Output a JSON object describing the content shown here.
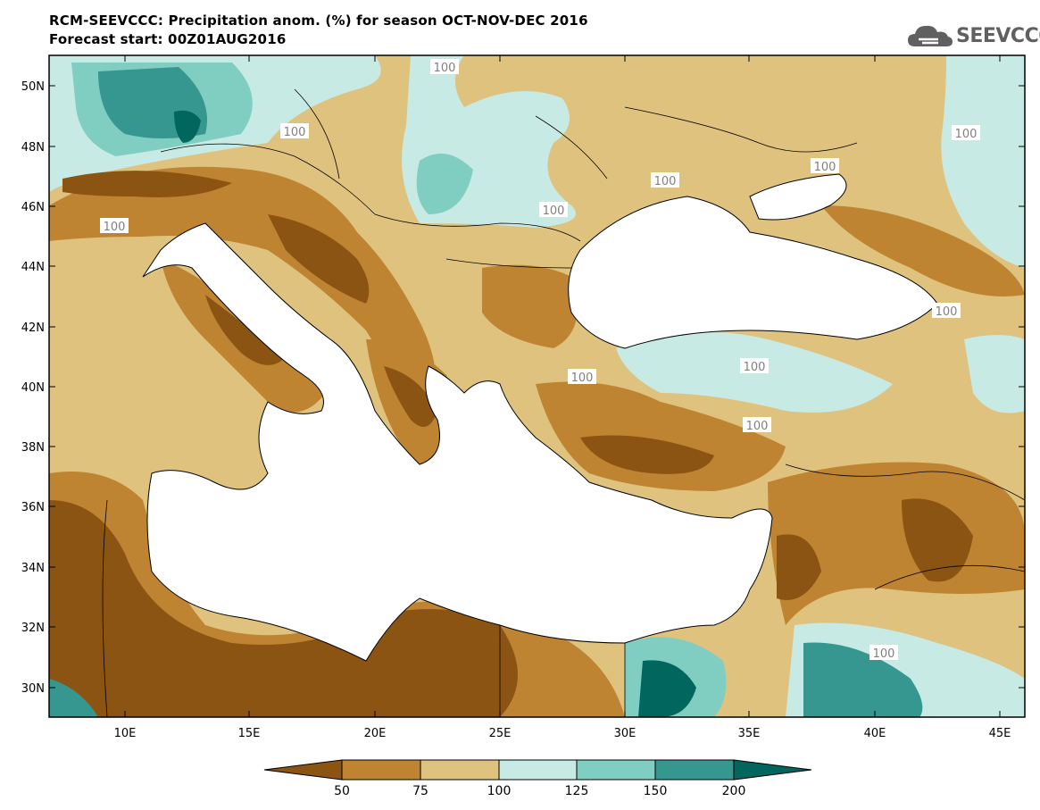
{
  "title": {
    "line1": "RCM-SEEVCCC: Precipitation anom. (%) for season OCT-NOV-DEC 2016",
    "line2": "Forecast start: 00Z01AUG2016"
  },
  "logo": {
    "text": "SEEVCCC",
    "icon": "cloud-logo-icon"
  },
  "axes": {
    "lat_ticks": [
      "50N",
      "48N",
      "46N",
      "44N",
      "42N",
      "40N",
      "38N",
      "36N",
      "34N",
      "32N",
      "30N"
    ],
    "lon_ticks": [
      "10E",
      "15E",
      "20E",
      "25E",
      "30E",
      "35E",
      "40E",
      "45E"
    ]
  },
  "contour_labels": [
    "100",
    "100",
    "100",
    "100",
    "100",
    "100",
    "100",
    "100",
    "100",
    "100",
    "100",
    "100"
  ],
  "colorbar": {
    "labels": [
      "50",
      "75",
      "100",
      "125",
      "150",
      "200"
    ],
    "colors": [
      "#8c5412",
      "#bf8432",
      "#dfc27d",
      "#c7eae5",
      "#80cdc1",
      "#35978f",
      "#01665e"
    ]
  }
}
